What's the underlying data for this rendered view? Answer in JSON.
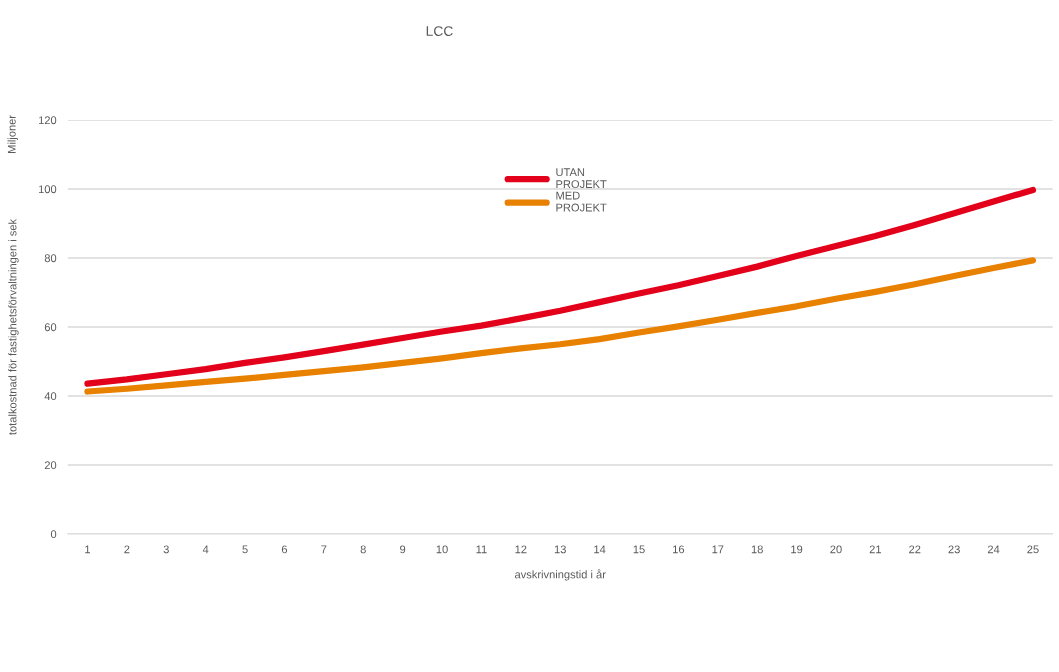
{
  "chart_data": {
    "type": "line",
    "title": "LCC",
    "xlabel": "avskrivningstid i år",
    "ylabel": "totalkostnad för fastighetsförvaltningen i sek",
    "annotations": [
      "Miljoner"
    ],
    "categories": [
      "1",
      "2",
      "3",
      "4",
      "5",
      "6",
      "7",
      "8",
      "9",
      "10",
      "11",
      "12",
      "13",
      "14",
      "15",
      "16",
      "17",
      "18",
      "19",
      "20",
      "21",
      "22",
      "23",
      "24",
      "25"
    ],
    "series": [
      {
        "name": "UTAN PROJEKT",
        "color": "#e2001a",
        "values": [
          43.6,
          44.8,
          46.3,
          47.8,
          49.6,
          51.2,
          53.0,
          54.9,
          56.8,
          58.7,
          60.4,
          62.5,
          64.7,
          67.2,
          69.7,
          72.1,
          74.8,
          77.5,
          80.6,
          83.5,
          86.4,
          89.6,
          93.0,
          96.4,
          99.7
        ]
      },
      {
        "name": "MED PROJEKT",
        "color": "#e88000",
        "values": [
          41.3,
          42.1,
          43.1,
          44.1,
          45.0,
          46.1,
          47.2,
          48.3,
          49.6,
          50.9,
          52.4,
          53.8,
          55.0,
          56.5,
          58.4,
          60.2,
          62.1,
          64.1,
          66.0,
          68.2,
          70.2,
          72.4,
          74.8,
          77.1,
          79.3
        ]
      }
    ],
    "ylim": [
      0,
      120
    ],
    "yticks": [
      0,
      20,
      40,
      60,
      80,
      100,
      120
    ],
    "grid": "y",
    "legend": "top",
    "marker": "none",
    "line_style": "solid"
  }
}
